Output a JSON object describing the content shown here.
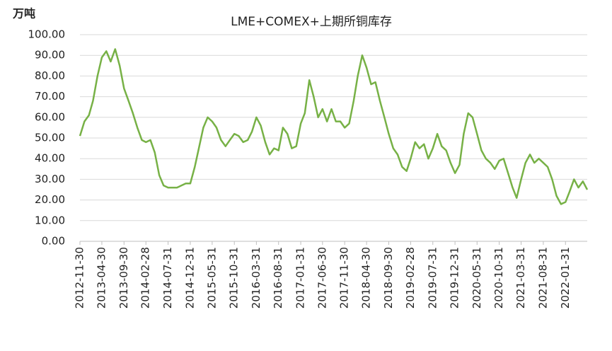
{
  "chart_data": {
    "type": "line",
    "title": "LME+COMEX+上期所铜库存",
    "y_label": "万吨",
    "x": [
      "2012-11-30",
      "2012-12-31",
      "2013-01-31",
      "2013-02-28",
      "2013-03-31",
      "2013-04-30",
      "2013-05-31",
      "2013-06-30",
      "2013-07-31",
      "2013-08-31",
      "2013-09-30",
      "2013-10-31",
      "2013-11-30",
      "2013-12-31",
      "2014-01-31",
      "2014-02-28",
      "2014-03-31",
      "2014-04-30",
      "2014-05-31",
      "2014-06-30",
      "2014-07-31",
      "2014-08-31",
      "2014-09-30",
      "2014-10-31",
      "2014-11-30",
      "2014-12-31",
      "2015-01-31",
      "2015-02-28",
      "2015-03-31",
      "2015-04-30",
      "2015-05-31",
      "2015-06-30",
      "2015-07-31",
      "2015-08-31",
      "2015-09-30",
      "2015-10-31",
      "2015-11-30",
      "2015-12-31",
      "2016-01-31",
      "2016-02-29",
      "2016-03-31",
      "2016-04-30",
      "2016-05-31",
      "2016-06-30",
      "2016-07-31",
      "2016-08-31",
      "2016-09-30",
      "2016-10-31",
      "2016-11-30",
      "2016-12-31",
      "2017-01-31",
      "2017-02-28",
      "2017-03-31",
      "2017-04-30",
      "2017-05-31",
      "2017-06-30",
      "2017-07-31",
      "2017-08-31",
      "2017-09-30",
      "2017-10-31",
      "2017-11-30",
      "2017-12-31",
      "2018-01-31",
      "2018-02-28",
      "2018-03-31",
      "2018-04-30",
      "2018-05-31",
      "2018-06-30",
      "2018-07-31",
      "2018-08-31",
      "2018-09-30",
      "2018-10-31",
      "2018-11-30",
      "2018-12-31",
      "2019-01-31",
      "2019-02-28",
      "2019-03-31",
      "2019-04-30",
      "2019-05-31",
      "2019-06-30",
      "2019-07-31",
      "2019-08-31",
      "2019-09-30",
      "2019-10-31",
      "2019-11-30",
      "2019-12-31",
      "2020-01-31",
      "2020-02-29",
      "2020-03-31",
      "2020-04-30",
      "2020-05-31",
      "2020-06-30",
      "2020-07-31",
      "2020-08-31",
      "2020-09-30",
      "2020-10-31",
      "2020-11-30",
      "2020-12-31",
      "2021-01-31",
      "2021-02-28",
      "2021-03-31",
      "2021-04-30",
      "2021-05-31",
      "2021-06-30",
      "2021-07-31",
      "2021-08-31",
      "2021-09-30",
      "2021-10-31",
      "2021-11-30",
      "2021-12-31",
      "2022-01-31",
      "2022-02-28",
      "2022-03-31",
      "2022-04-30",
      "2022-05-31",
      "2022-06-30"
    ],
    "series": [
      {
        "color": "#77b146",
        "values": [
          51,
          58,
          61,
          68,
          80,
          89,
          92,
          87,
          93,
          85,
          74,
          68,
          62,
          55,
          49,
          48,
          49,
          43,
          32,
          27,
          26,
          26,
          26,
          27,
          28,
          28,
          36,
          45,
          55,
          60,
          58,
          55,
          49,
          46,
          49,
          52,
          51,
          48,
          49,
          53,
          60,
          56,
          48,
          42,
          45,
          44,
          55,
          52,
          45,
          46,
          57,
          62,
          78,
          70,
          60,
          64,
          58,
          64,
          58,
          58,
          55,
          57,
          68,
          80,
          90,
          84,
          76,
          77,
          68,
          60,
          52,
          45,
          42,
          36,
          34,
          40,
          48,
          45,
          47,
          40,
          45,
          52,
          46,
          44,
          38,
          33,
          37,
          52,
          62,
          60,
          52,
          44,
          40,
          38,
          35,
          39,
          40,
          33,
          26,
          21,
          30,
          38,
          42,
          38,
          40,
          38,
          36,
          30,
          22,
          18,
          19,
          24,
          30,
          26,
          29,
          25
        ]
      }
    ],
    "xlim": [
      "2012-11-30",
      "2022-06-30"
    ],
    "xticks": [
      "2012-11-30",
      "2013-04-30",
      "2013-09-30",
      "2014-02-28",
      "2014-07-31",
      "2014-12-31",
      "2015-05-31",
      "2015-10-31",
      "2016-03-31",
      "2016-08-31",
      "2017-01-31",
      "2017-06-30",
      "2017-11-30",
      "2018-04-30",
      "2018-09-30",
      "2019-02-28",
      "2019-07-31",
      "2019-12-31",
      "2020-05-31",
      "2020-10-31",
      "2021-03-31",
      "2021-08-31",
      "2022-01-31"
    ],
    "ylim": [
      0,
      100
    ],
    "yticks": [
      {
        "value": 0,
        "label": "0.00"
      },
      {
        "value": 10,
        "label": "10.00"
      },
      {
        "value": 20,
        "label": "20.00"
      },
      {
        "value": 30,
        "label": "30.00"
      },
      {
        "value": 40,
        "label": "40.00"
      },
      {
        "value": 50,
        "label": "50.00"
      },
      {
        "value": 60,
        "label": "60.00"
      },
      {
        "value": 70,
        "label": "70.00"
      },
      {
        "value": 80,
        "label": "80.00"
      },
      {
        "value": 90,
        "label": "90.00"
      },
      {
        "value": 100,
        "label": "100.00"
      }
    ],
    "grid": true
  }
}
